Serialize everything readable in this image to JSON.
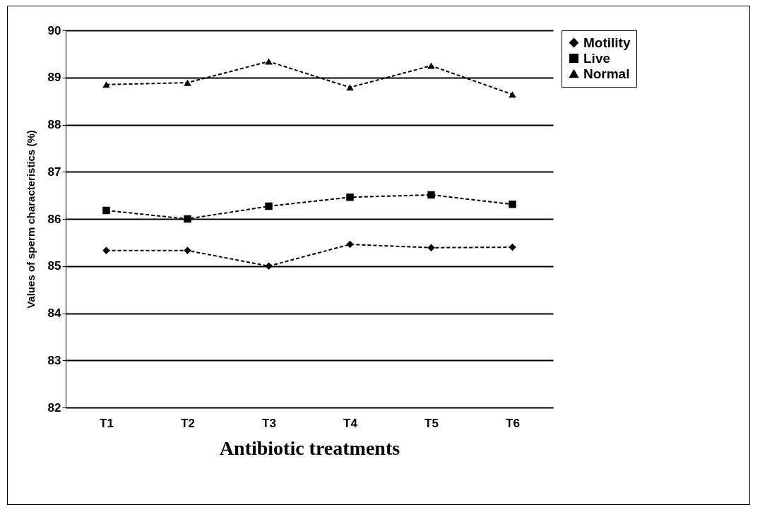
{
  "chart_data": {
    "type": "line",
    "xlabel": "Antibiotic treatments",
    "ylabel": "Values of sperm characteristics (%)",
    "categories": [
      "T1",
      "T2",
      "T3",
      "T4",
      "T5",
      "T6"
    ],
    "ylim": [
      82,
      90
    ],
    "yticks": [
      82,
      83,
      84,
      85,
      86,
      87,
      88,
      89,
      90
    ],
    "grid": "y",
    "legend": "right",
    "line_style": "dashed",
    "series": [
      {
        "name": "Motility",
        "color": "#000000",
        "marker": "diamond",
        "values": [
          85.33,
          85.33,
          85.0,
          85.46,
          85.39,
          85.4
        ]
      },
      {
        "name": "Live",
        "color": "#000000",
        "marker": "square",
        "values": [
          86.18,
          86.0,
          86.27,
          86.46,
          86.51,
          86.31
        ]
      },
      {
        "name": "Normal",
        "color": "#000000",
        "marker": "triangle",
        "values": [
          88.85,
          88.89,
          89.34,
          88.79,
          89.25,
          88.64
        ]
      }
    ]
  }
}
